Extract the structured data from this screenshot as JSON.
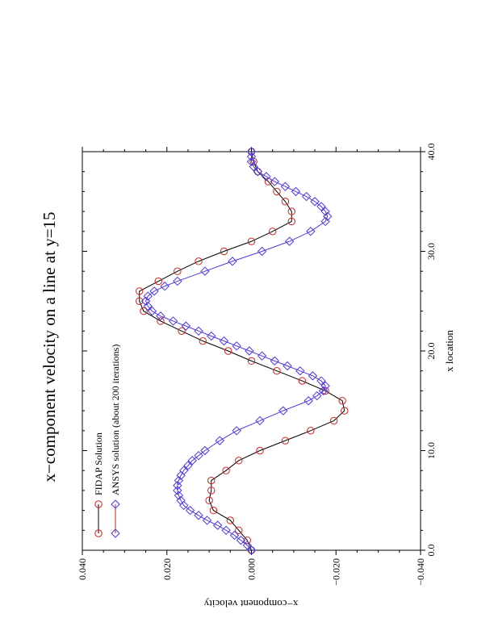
{
  "chart_data": {
    "type": "line",
    "orientation": "rotated-90",
    "title": "x−component velocity on a line at y=15",
    "xlabel": "x location",
    "ylabel": "x−component velocity",
    "xlim": [
      0.0,
      40.0
    ],
    "ylim": [
      -0.04,
      0.04
    ],
    "x_ticks": [
      0,
      10,
      20,
      30,
      40
    ],
    "x_tick_labels": [
      "0.0",
      "10.0",
      "20.0",
      "30.0",
      "40.0"
    ],
    "y_ticks": [
      -0.04,
      -0.02,
      0.0,
      0.02,
      0.04
    ],
    "y_tick_labels": [
      "−0.040",
      "−0.020",
      "0.000",
      "0.020",
      "0.040"
    ],
    "grid": false,
    "legend_placement": "top-left",
    "series": [
      {
        "name": "FIDAP Solution",
        "color": "#d02020",
        "marker": "circle",
        "x": [
          0,
          1,
          2,
          3,
          4,
          5,
          6,
          7,
          8,
          9,
          10,
          11,
          12,
          13,
          14,
          15,
          16,
          17,
          18,
          19,
          20,
          21,
          22,
          23,
          24,
          25,
          26,
          27,
          28,
          29,
          30,
          31,
          32,
          33,
          34,
          35,
          36,
          37,
          38,
          39,
          40
        ],
        "y": [
          0.0,
          0.001,
          0.003,
          0.005,
          0.009,
          0.01,
          0.0095,
          0.0095,
          0.006,
          0.003,
          -0.002,
          -0.008,
          -0.014,
          -0.0195,
          -0.022,
          -0.0215,
          -0.0175,
          -0.012,
          -0.006,
          0.0,
          0.0055,
          0.0115,
          0.0165,
          0.0215,
          0.0255,
          0.0265,
          0.0265,
          0.022,
          0.0175,
          0.0125,
          0.0065,
          0.0,
          -0.005,
          -0.0095,
          -0.0095,
          -0.008,
          -0.006,
          -0.004,
          -0.0015,
          -0.0005,
          0.0
        ]
      },
      {
        "name": "ANSYS solution (about 200 iterations)",
        "color": "#4a3ae0",
        "marker": "diamond",
        "x": [
          0,
          0.5,
          1,
          1.5,
          2,
          2.5,
          3,
          3.5,
          4,
          4.5,
          5,
          5.5,
          6,
          6.5,
          7,
          7.5,
          8,
          8.5,
          9,
          9.5,
          10,
          11,
          12,
          13,
          14,
          15,
          15.5,
          16,
          16.5,
          17,
          17.5,
          18,
          18.5,
          19,
          19.5,
          20,
          20.5,
          21,
          21.5,
          22,
          22.5,
          23,
          23.5,
          24,
          24.5,
          25,
          25.5,
          26,
          26.5,
          27,
          28,
          29,
          30,
          31,
          32,
          33,
          33.5,
          34,
          34.5,
          35,
          35.5,
          36,
          36.5,
          37,
          37.5,
          38,
          38.5,
          39,
          39.5,
          40
        ],
        "y": [
          0.0,
          0.001,
          0.0025,
          0.004,
          0.006,
          0.008,
          0.0105,
          0.0125,
          0.0145,
          0.016,
          0.0167,
          0.0172,
          0.0175,
          0.0175,
          0.0172,
          0.0167,
          0.016,
          0.015,
          0.014,
          0.0125,
          0.011,
          0.0075,
          0.0035,
          -0.002,
          -0.0075,
          -0.0135,
          -0.0155,
          -0.017,
          -0.0175,
          -0.0165,
          -0.0145,
          -0.0115,
          -0.0085,
          -0.0055,
          -0.0025,
          0.0005,
          0.0035,
          0.0065,
          0.0095,
          0.0125,
          0.0155,
          0.0185,
          0.0215,
          0.0235,
          0.0245,
          0.025,
          0.0245,
          0.023,
          0.0205,
          0.0175,
          0.011,
          0.0045,
          -0.0025,
          -0.009,
          -0.014,
          -0.0175,
          -0.018,
          -0.0175,
          -0.0165,
          -0.015,
          -0.013,
          -0.0105,
          -0.008,
          -0.0055,
          -0.0035,
          -0.0015,
          -0.0005,
          0.0,
          0.0,
          0.0
        ]
      }
    ]
  }
}
